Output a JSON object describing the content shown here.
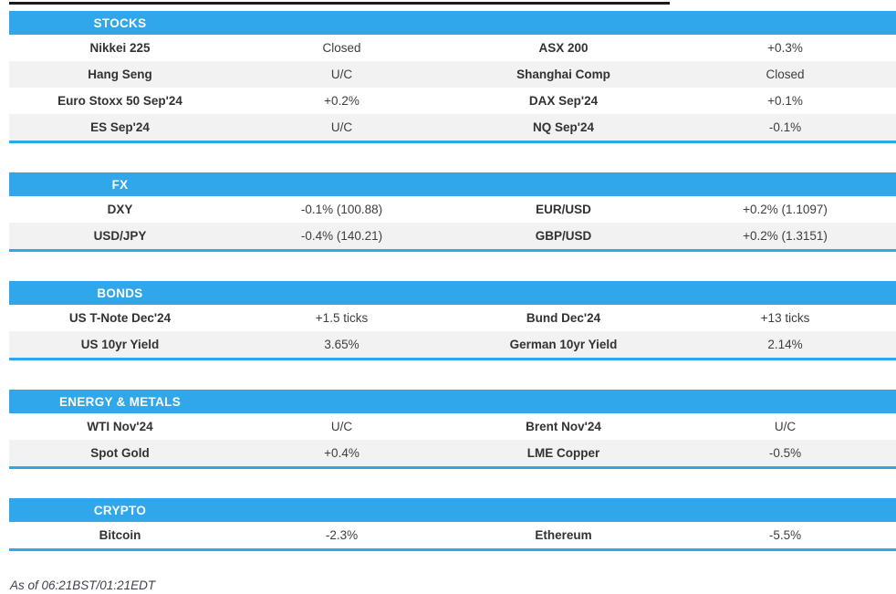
{
  "report": {
    "footer_note": "As of 06:21BST/01:21EDT"
  },
  "colors": {
    "accent_blue": "#30a7ea",
    "stripe_gray": "#f2f2f2",
    "header_text": "#ffffff",
    "body_text": "#333333",
    "top_rule_black": "#1a1a1a"
  },
  "sections": [
    {
      "title": "STOCKS",
      "rows": [
        [
          "Nikkei 225",
          "Closed",
          "ASX 200",
          "+0.3%"
        ],
        [
          "Hang Seng",
          "U/C",
          "Shanghai Comp",
          "Closed"
        ],
        [
          "Euro Stoxx 50 Sep'24",
          "+0.2%",
          "DAX Sep'24",
          "+0.1%"
        ],
        [
          "ES Sep'24",
          "U/C",
          "NQ Sep'24",
          "-0.1%"
        ]
      ]
    },
    {
      "title": "FX",
      "rows": [
        [
          "DXY",
          "-0.1% (100.88)",
          "EUR/USD",
          "+0.2% (1.1097)"
        ],
        [
          "USD/JPY",
          "-0.4% (140.21)",
          "GBP/USD",
          "+0.2% (1.3151)"
        ]
      ]
    },
    {
      "title": "BONDS",
      "rows": [
        [
          "US T-Note Dec'24",
          "+1.5 ticks",
          "Bund Dec'24",
          "+13 ticks"
        ],
        [
          "US 10yr Yield",
          "3.65%",
          "German 10yr Yield",
          "2.14%"
        ]
      ]
    },
    {
      "title": "ENERGY & METALS",
      "rows": [
        [
          "WTI Nov'24",
          "U/C",
          "Brent Nov'24",
          "U/C"
        ],
        [
          "Spot Gold",
          "+0.4%",
          "LME Copper",
          "-0.5%"
        ]
      ]
    },
    {
      "title": "CRYPTO",
      "rows": [
        [
          "Bitcoin",
          "-2.3%",
          "Ethereum",
          "-5.5%"
        ]
      ]
    }
  ]
}
